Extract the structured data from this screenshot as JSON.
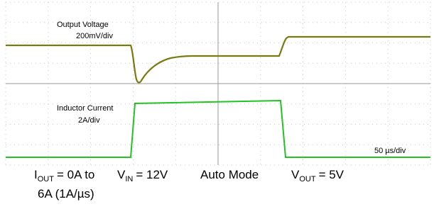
{
  "traces": [
    {
      "label": "Output Voltage",
      "scale": "200mV/div"
    },
    {
      "label": "Inductor Current",
      "scale": "2A/div"
    }
  ],
  "timebase": "50 µs/div",
  "conditions": [
    {
      "symbol": "I",
      "subscript": "OUT",
      "lines": [
        "= 0A to",
        "6A (1A/µs)"
      ]
    },
    {
      "symbol": "V",
      "subscript": "IN",
      "lines": [
        "= 12V"
      ]
    },
    {
      "text": "Auto Mode"
    },
    {
      "symbol": "V",
      "subscript": "OUT",
      "lines": [
        "= 5V"
      ]
    }
  ]
}
